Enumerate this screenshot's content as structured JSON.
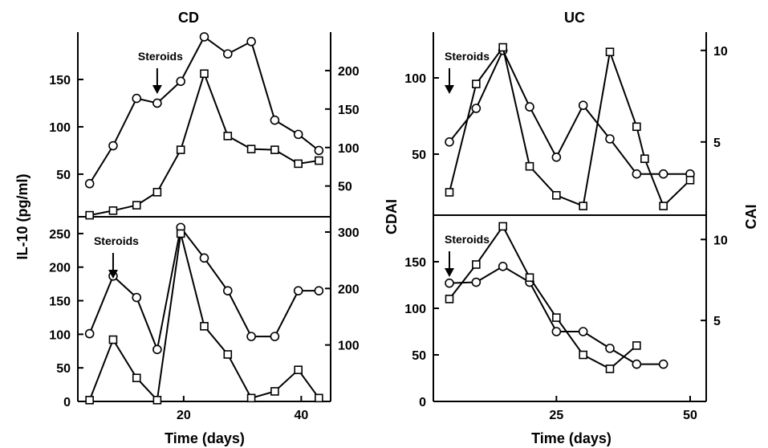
{
  "chart_data": [
    {
      "type": "line",
      "panel": "CD-top",
      "title": "CD",
      "ylabel": "IL-10 (pg/ml)",
      "y2label": "CDAI",
      "xlim": [
        2,
        45
      ],
      "ylim": [
        5,
        200
      ],
      "y2lim": [
        10,
        250
      ],
      "yticks": [
        50,
        100,
        150
      ],
      "y2ticks": [
        50,
        100,
        150,
        200
      ],
      "annotation": "Steroids",
      "annotation_x": 15.5,
      "series": [
        {
          "marker": "circle",
          "axis": "left",
          "x": [
            4,
            8,
            12,
            15.5,
            19.5,
            23.5,
            27.5,
            31.5,
            35.5,
            39.5,
            43
          ],
          "y": [
            40,
            80,
            130,
            125,
            148,
            195,
            177,
            190,
            107,
            92,
            75
          ]
        },
        {
          "marker": "square",
          "axis": "right",
          "x": [
            4,
            8,
            12,
            15.5,
            19.5,
            23.5,
            27.5,
            31.5,
            35.5,
            39.5,
            43
          ],
          "y": [
            12,
            18,
            25,
            42,
            97,
            196,
            115,
            98,
            97,
            79,
            83
          ]
        }
      ]
    },
    {
      "type": "line",
      "panel": "CD-bottom",
      "xlabel": "Time (days)",
      "xlim": [
        2,
        45
      ],
      "xticks": [
        20,
        40
      ],
      "ylim": [
        0,
        275
      ],
      "y2lim": [
        0,
        327
      ],
      "yticks": [
        0,
        50,
        100,
        150,
        200,
        250
      ],
      "y2ticks": [
        100,
        200,
        300
      ],
      "annotation": "Steroids",
      "annotation_x": 8,
      "series": [
        {
          "marker": "circle",
          "axis": "right",
          "x": [
            4,
            8,
            12,
            15.5,
            19.5,
            23.5,
            27.5,
            31.5,
            35.5,
            39.5,
            43
          ],
          "y": [
            120,
            222,
            184,
            92,
            308,
            254,
            196,
            115,
            115,
            196,
            196
          ]
        },
        {
          "marker": "square",
          "axis": "left",
          "x": [
            4,
            8,
            12,
            15.5,
            19.5,
            23.5,
            27.5,
            31.5,
            35.5,
            39.5,
            43
          ],
          "y": [
            2,
            92,
            35,
            2,
            250,
            112,
            70,
            5,
            15,
            47,
            5
          ]
        }
      ]
    },
    {
      "type": "line",
      "panel": "UC-top",
      "title": "UC",
      "y2label": "CAI",
      "xlim": [
        2,
        53
      ],
      "ylim": [
        10,
        130
      ],
      "y2lim": [
        1,
        11
      ],
      "yticks": [
        50,
        100
      ],
      "y2ticks": [
        5,
        10
      ],
      "annotation": "Steroids",
      "annotation_x": 5,
      "series": [
        {
          "marker": "circle",
          "axis": "left",
          "x": [
            5,
            10,
            15,
            20,
            25,
            30,
            35,
            40,
            45,
            50
          ],
          "y": [
            58,
            80,
            118,
            81,
            48,
            82,
            60,
            37,
            37,
            37
          ]
        },
        {
          "marker": "square",
          "axis": "left",
          "x": [
            5,
            10,
            15,
            20,
            25,
            30,
            35,
            40,
            41.5,
            45,
            50
          ],
          "y": [
            25,
            96,
            120,
            42,
            23,
            16,
            117,
            68,
            47,
            16,
            33
          ]
        }
      ]
    },
    {
      "type": "line",
      "panel": "UC-bottom",
      "xlabel": "Time (days)",
      "xlim": [
        2,
        53
      ],
      "xticks": [
        25,
        50
      ],
      "ylim": [
        0,
        200
      ],
      "y2lim": [
        0,
        11.5
      ],
      "yticks": [
        0,
        50,
        100,
        150
      ],
      "y2ticks": [
        5,
        10
      ],
      "annotation": "Steroids",
      "annotation_x": 5,
      "series": [
        {
          "marker": "circle",
          "axis": "left",
          "x": [
            5,
            10,
            15,
            20,
            25,
            30,
            35,
            40,
            45
          ],
          "y": [
            127,
            128,
            145,
            128,
            75,
            75,
            57,
            40,
            40
          ]
        },
        {
          "marker": "square",
          "axis": "left",
          "x": [
            5,
            10,
            15,
            20,
            25,
            30,
            35,
            40
          ],
          "y": [
            110,
            147,
            188,
            133,
            90,
            50,
            35,
            60
          ]
        }
      ]
    }
  ]
}
